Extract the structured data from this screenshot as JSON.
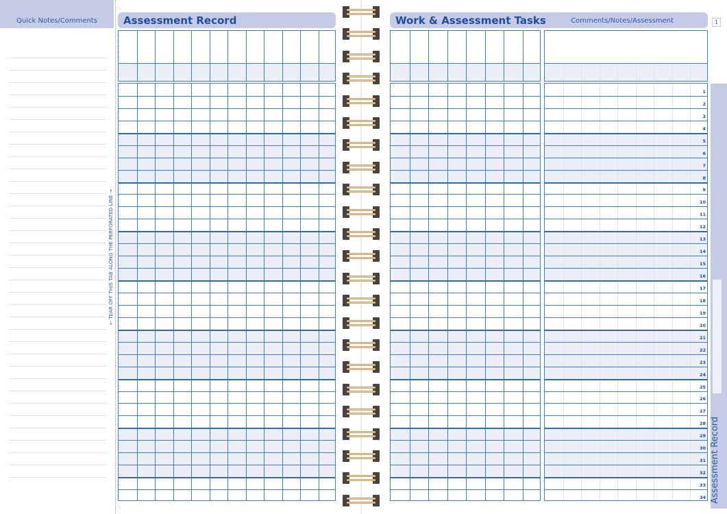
{
  "left_sidebar": {
    "title": "Quick Notes/Comments",
    "tear_instruction": "← TEAR OFF THIS TAB ALONG THE PERFORATED LINE →"
  },
  "left_page": {
    "title": "Assessment Record",
    "columns": 12
  },
  "right_page": {
    "title": "Work & Assessment Tasks",
    "subtitle": "Comments/Notes/Assessment",
    "page_number": "1",
    "task_columns": 8,
    "comment_columns": 9
  },
  "side_tab": {
    "label": "Assessment Record"
  },
  "rows": [
    "1",
    "2",
    "3",
    "4",
    "5",
    "6",
    "7",
    "8",
    "9",
    "10",
    "11",
    "12",
    "13",
    "14",
    "15",
    "16",
    "17",
    "18",
    "19",
    "20",
    "21",
    "22",
    "23",
    "24",
    "25",
    "26",
    "27",
    "28",
    "29",
    "30",
    "31",
    "32",
    "33",
    "34"
  ],
  "colors": {
    "accent": "#c5cbe6",
    "grid": "#3e7cc6",
    "text": "#1f4f9c"
  }
}
